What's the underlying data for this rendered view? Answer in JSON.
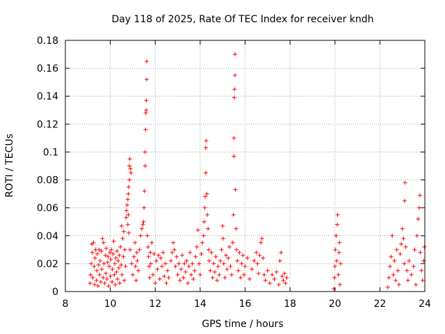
{
  "chart_data": {
    "type": "scatter",
    "title": "Day 118 of 2025, Rate Of TEC Index for receiver kndh",
    "xlabel": "GPS time / hours",
    "ylabel": "ROTI / TECUs",
    "xlim": [
      8,
      24
    ],
    "ylim": [
      0,
      0.18
    ],
    "x_ticks": [
      8,
      10,
      12,
      14,
      16,
      18,
      20,
      22,
      24
    ],
    "x_tick_labels": [
      "8",
      "10",
      "12",
      "14",
      "16",
      "18",
      "20",
      "22",
      "24"
    ],
    "y_ticks": [
      0,
      0.02,
      0.04,
      0.06,
      0.08,
      0.1,
      0.12,
      0.14,
      0.16,
      0.18
    ],
    "y_tick_labels": [
      "0",
      "0.02",
      "0.04",
      "0.06",
      "0.08",
      "0.1",
      "0.12",
      "0.14",
      "0.16",
      "0.18"
    ],
    "grid": true,
    "marker": "+",
    "series": [
      {
        "name": "ROTI",
        "color": "#ff0000",
        "points": [
          [
            9.1,
            0.006
          ],
          [
            9.12,
            0.012
          ],
          [
            9.15,
            0.02
          ],
          [
            9.18,
            0.034
          ],
          [
            9.2,
            0.028
          ],
          [
            9.22,
            0.01
          ],
          [
            9.25,
            0.035
          ],
          [
            9.28,
            0.018
          ],
          [
            9.3,
            0.005
          ],
          [
            9.32,
            0.024
          ],
          [
            9.35,
            0.03
          ],
          [
            9.38,
            0.008
          ],
          [
            9.4,
            0.015
          ],
          [
            9.42,
            0.027
          ],
          [
            9.45,
            0.004
          ],
          [
            9.48,
            0.019
          ],
          [
            9.5,
            0.03
          ],
          [
            9.52,
            0.012
          ],
          [
            9.55,
            0.022
          ],
          [
            9.58,
            0.007
          ],
          [
            9.6,
            0.029
          ],
          [
            9.62,
            0.016
          ],
          [
            9.65,
            0.038
          ],
          [
            9.68,
            0.01
          ],
          [
            9.7,
            0.035
          ],
          [
            9.72,
            0.02
          ],
          [
            9.75,
            0.006
          ],
          [
            9.78,
            0.026
          ],
          [
            9.8,
            0.013
          ],
          [
            9.82,
            0.031
          ],
          [
            9.85,
            0.009
          ],
          [
            9.88,
            0.021
          ],
          [
            9.9,
            0.025
          ],
          [
            9.92,
            0.004
          ],
          [
            9.95,
            0.018
          ],
          [
            9.98,
            0.028
          ],
          [
            10.0,
            0.011
          ],
          [
            10.02,
            0.023
          ],
          [
            10.05,
            0.03
          ],
          [
            10.08,
            0.007
          ],
          [
            10.1,
            0.016
          ],
          [
            10.12,
            0.027
          ],
          [
            10.15,
            0.036
          ],
          [
            10.18,
            0.012
          ],
          [
            10.2,
            0.02
          ],
          [
            10.22,
            0.005
          ],
          [
            10.25,
            0.024
          ],
          [
            10.28,
            0.014
          ],
          [
            10.3,
            0.029
          ],
          [
            10.32,
            0.009
          ],
          [
            10.35,
            0.022
          ],
          [
            10.38,
            0.017
          ],
          [
            10.4,
            0.026
          ],
          [
            10.42,
            0.006
          ],
          [
            10.45,
            0.032
          ],
          [
            10.48,
            0.019
          ],
          [
            10.5,
            0.047
          ],
          [
            10.52,
            0.012
          ],
          [
            10.55,
            0.038
          ],
          [
            10.58,
            0.025
          ],
          [
            10.6,
            0.043
          ],
          [
            10.62,
            0.008
          ],
          [
            10.65,
            0.03
          ],
          [
            10.68,
            0.018
          ],
          [
            10.7,
            0.053
          ],
          [
            10.72,
            0.058
          ],
          [
            10.75,
            0.062
          ],
          [
            10.78,
            0.066
          ],
          [
            10.8,
            0.07
          ],
          [
            10.82,
            0.075
          ],
          [
            10.85,
            0.08
          ],
          [
            10.85,
            0.09
          ],
          [
            10.87,
            0.095
          ],
          [
            10.9,
            0.088
          ],
          [
            10.92,
            0.085
          ],
          [
            10.78,
            0.048
          ],
          [
            10.8,
            0.055
          ],
          [
            10.82,
            0.042
          ],
          [
            10.88,
            0.03
          ],
          [
            10.95,
            0.02
          ],
          [
            11.0,
            0.012
          ],
          [
            11.05,
            0.025
          ],
          [
            11.1,
            0.035
          ],
          [
            11.12,
            0.018
          ],
          [
            11.15,
            0.008
          ],
          [
            11.18,
            0.028
          ],
          [
            11.2,
            0.022
          ],
          [
            11.25,
            0.015
          ],
          [
            11.3,
            0.03
          ],
          [
            11.35,
            0.04
          ],
          [
            11.4,
            0.045
          ],
          [
            11.45,
            0.048
          ],
          [
            11.48,
            0.05
          ],
          [
            11.5,
            0.06
          ],
          [
            11.52,
            0.072
          ],
          [
            11.55,
            0.09
          ],
          [
            11.55,
            0.1
          ],
          [
            11.57,
            0.116
          ],
          [
            11.58,
            0.128
          ],
          [
            11.6,
            0.13
          ],
          [
            11.6,
            0.137
          ],
          [
            11.62,
            0.152
          ],
          [
            11.62,
            0.165
          ],
          [
            11.65,
            0.04
          ],
          [
            11.68,
            0.032
          ],
          [
            11.7,
            0.025
          ],
          [
            11.72,
            0.018
          ],
          [
            11.75,
            0.01
          ],
          [
            11.78,
            0.028
          ],
          [
            11.8,
            0.02
          ],
          [
            11.85,
            0.035
          ],
          [
            11.9,
            0.012
          ],
          [
            11.95,
            0.027
          ],
          [
            12.0,
            0.006
          ],
          [
            12.05,
            0.022
          ],
          [
            12.1,
            0.016
          ],
          [
            12.15,
            0.026
          ],
          [
            12.2,
            0.009
          ],
          [
            12.25,
            0.024
          ],
          [
            12.3,
            0.018
          ],
          [
            12.35,
            0.028
          ],
          [
            12.4,
            0.011
          ],
          [
            12.45,
            0.02
          ],
          [
            12.5,
            0.006
          ],
          [
            12.55,
            0.015
          ],
          [
            12.6,
            0.01
          ],
          [
            12.7,
            0.022
          ],
          [
            12.75,
            0.028
          ],
          [
            12.8,
            0.035
          ],
          [
            12.85,
            0.03
          ],
          [
            12.9,
            0.018
          ],
          [
            12.95,
            0.025
          ],
          [
            13.0,
            0.012
          ],
          [
            13.05,
            0.02
          ],
          [
            13.1,
            0.008
          ],
          [
            13.15,
            0.016
          ],
          [
            13.2,
            0.026
          ],
          [
            13.25,
            0.01
          ],
          [
            13.3,
            0.02
          ],
          [
            13.35,
            0.014
          ],
          [
            13.4,
            0.022
          ],
          [
            13.45,
            0.006
          ],
          [
            13.5,
            0.018
          ],
          [
            13.55,
            0.028
          ],
          [
            13.6,
            0.012
          ],
          [
            13.65,
            0.02
          ],
          [
            13.7,
            0.009
          ],
          [
            13.75,
            0.015
          ],
          [
            13.8,
            0.025
          ],
          [
            13.85,
            0.032
          ],
          [
            13.9,
            0.044
          ],
          [
            13.95,
            0.02
          ],
          [
            14.0,
            0.012
          ],
          [
            14.05,
            0.027
          ],
          [
            14.1,
            0.035
          ],
          [
            14.15,
            0.04
          ],
          [
            14.18,
            0.05
          ],
          [
            14.2,
            0.06
          ],
          [
            14.22,
            0.068
          ],
          [
            14.25,
            0.085
          ],
          [
            14.25,
            0.103
          ],
          [
            14.27,
            0.108
          ],
          [
            14.3,
            0.07
          ],
          [
            14.32,
            0.055
          ],
          [
            14.35,
            0.045
          ],
          [
            14.38,
            0.03
          ],
          [
            14.4,
            0.022
          ],
          [
            14.45,
            0.015
          ],
          [
            14.5,
            0.028
          ],
          [
            14.55,
            0.01
          ],
          [
            14.6,
            0.02
          ],
          [
            14.65,
            0.014
          ],
          [
            14.7,
            0.025
          ],
          [
            14.75,
            0.008
          ],
          [
            14.8,
            0.018
          ],
          [
            14.85,
            0.012
          ],
          [
            14.9,
            0.022
          ],
          [
            14.95,
            0.03
          ],
          [
            15.0,
            0.047
          ],
          [
            15.02,
            0.038
          ],
          [
            15.05,
            0.02
          ],
          [
            15.1,
            0.01
          ],
          [
            15.15,
            0.026
          ],
          [
            15.2,
            0.016
          ],
          [
            15.25,
            0.024
          ],
          [
            15.3,
            0.032
          ],
          [
            15.35,
            0.018
          ],
          [
            15.4,
            0.012
          ],
          [
            15.45,
            0.035
          ],
          [
            15.48,
            0.055
          ],
          [
            15.5,
            0.097
          ],
          [
            15.5,
            0.11
          ],
          [
            15.52,
            0.139
          ],
          [
            15.53,
            0.145
          ],
          [
            15.55,
            0.155
          ],
          [
            15.55,
            0.17
          ],
          [
            15.57,
            0.073
          ],
          [
            15.6,
            0.045
          ],
          [
            15.62,
            0.03
          ],
          [
            15.65,
            0.022
          ],
          [
            15.7,
            0.015
          ],
          [
            15.75,
            0.028
          ],
          [
            15.8,
            0.01
          ],
          [
            15.85,
            0.02
          ],
          [
            15.9,
            0.026
          ],
          [
            15.95,
            0.012
          ],
          [
            16.0,
            0.018
          ],
          [
            16.1,
            0.024
          ],
          [
            16.2,
            0.009
          ],
          [
            16.3,
            0.016
          ],
          [
            16.4,
            0.022
          ],
          [
            16.5,
            0.028
          ],
          [
            16.55,
            0.02
          ],
          [
            16.6,
            0.013
          ],
          [
            16.65,
            0.026
          ],
          [
            16.7,
            0.035
          ],
          [
            16.75,
            0.038
          ],
          [
            16.8,
            0.024
          ],
          [
            16.85,
            0.012
          ],
          [
            16.9,
            0.008
          ],
          [
            17.0,
            0.015
          ],
          [
            17.1,
            0.006
          ],
          [
            17.2,
            0.012
          ],
          [
            17.3,
            0.009
          ],
          [
            17.4,
            0.014
          ],
          [
            17.5,
            0.005
          ],
          [
            17.55,
            0.022
          ],
          [
            17.6,
            0.028
          ],
          [
            17.65,
            0.011
          ],
          [
            17.7,
            0.008
          ],
          [
            17.75,
            0.013
          ],
          [
            17.8,
            0.006
          ],
          [
            17.85,
            0.01
          ],
          [
            19.95,
            0.002
          ],
          [
            19.98,
            0.01
          ],
          [
            20.0,
            0.018
          ],
          [
            20.02,
            0.03
          ],
          [
            20.05,
            0.04
          ],
          [
            20.08,
            0.022
          ],
          [
            20.1,
            0.048
          ],
          [
            20.12,
            0.055
          ],
          [
            20.15,
            0.012
          ],
          [
            20.18,
            0.028
          ],
          [
            20.2,
            0.035
          ],
          [
            20.22,
            0.005
          ],
          [
            20.25,
            0.02
          ],
          [
            22.35,
            0.003
          ],
          [
            22.4,
            0.01
          ],
          [
            22.45,
            0.018
          ],
          [
            22.5,
            0.025
          ],
          [
            22.55,
            0.04
          ],
          [
            22.6,
            0.012
          ],
          [
            22.65,
            0.022
          ],
          [
            22.7,
            0.008
          ],
          [
            22.75,
            0.03
          ],
          [
            22.8,
            0.015
          ],
          [
            22.85,
            0.005
          ],
          [
            22.9,
            0.027
          ],
          [
            22.95,
            0.034
          ],
          [
            23.0,
            0.045
          ],
          [
            23.05,
            0.038
          ],
          [
            23.08,
            0.02
          ],
          [
            23.1,
            0.065
          ],
          [
            23.12,
            0.078
          ],
          [
            23.15,
            0.032
          ],
          [
            23.2,
            0.015
          ],
          [
            23.25,
            0.008
          ],
          [
            23.3,
            0.022
          ],
          [
            23.4,
            0.012
          ],
          [
            23.5,
            0.018
          ],
          [
            23.55,
            0.03
          ],
          [
            23.6,
            0.005
          ],
          [
            23.65,
            0.04
          ],
          [
            23.7,
            0.052
          ],
          [
            23.75,
            0.06
          ],
          [
            23.78,
            0.069
          ],
          [
            23.8,
            0.028
          ],
          [
            23.85,
            0.015
          ],
          [
            23.9,
            0.008
          ],
          [
            23.95,
            0.022
          ],
          [
            23.98,
            0.032
          ]
        ]
      }
    ]
  }
}
